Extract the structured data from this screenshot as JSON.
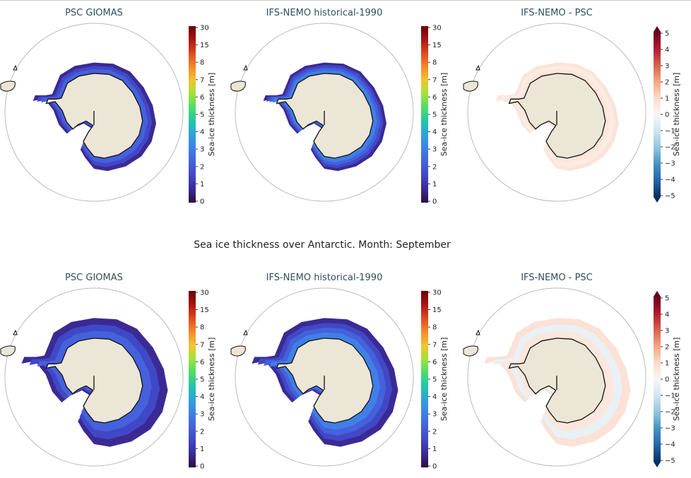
{
  "figure": {
    "subtitle": "Sea ice thickness over Antarctic. Month: September",
    "colors": {
      "title": "#2f4f5a",
      "land": "#ece6d6",
      "coast": "#111111",
      "frame": "#bbbbbb"
    }
  },
  "chart_data": [
    {
      "type": "heatmap",
      "title": "PSC GIOMAS",
      "colorbar_label": "Sea-ice thickness [m]",
      "cmap": "turbo",
      "ticks": [
        "0",
        "1",
        "2",
        "3",
        "4",
        "5",
        "6",
        "7",
        "8",
        "15",
        "30"
      ],
      "ice_extent": "small",
      "thickness_range": [
        0,
        2
      ]
    },
    {
      "type": "heatmap",
      "title": "IFS-NEMO historical-1990",
      "colorbar_label": "Sea-ice thickness [m]",
      "cmap": "turbo",
      "ticks": [
        "0",
        "1",
        "2",
        "3",
        "4",
        "5",
        "6",
        "7",
        "8",
        "15",
        "30"
      ],
      "ice_extent": "small",
      "thickness_range": [
        0,
        5
      ]
    },
    {
      "type": "heatmap",
      "title": "IFS-NEMO -  PSC",
      "colorbar_label": "Sea-ice thickness [m]",
      "cmap": "RdBu_r",
      "ticks": [
        "5",
        "4",
        "3",
        "2",
        "1",
        "0",
        "−1",
        "−2",
        "−3",
        "−4",
        "−5"
      ],
      "ice_extent": "small",
      "difference_range": [
        0,
        1.5
      ]
    },
    {
      "type": "heatmap",
      "title": "PSC GIOMAS",
      "colorbar_label": "Sea-ice thickness [m]",
      "cmap": "turbo",
      "ticks": [
        "0",
        "1",
        "2",
        "3",
        "4",
        "5",
        "6",
        "7",
        "8",
        "15",
        "30"
      ],
      "ice_extent": "large",
      "thickness_range": [
        0,
        2
      ]
    },
    {
      "type": "heatmap",
      "title": "IFS-NEMO historical-1990",
      "colorbar_label": "Sea-ice thickness [m]",
      "cmap": "turbo",
      "ticks": [
        "0",
        "1",
        "2",
        "3",
        "4",
        "5",
        "6",
        "7",
        "8",
        "15",
        "30"
      ],
      "ice_extent": "large",
      "thickness_range": [
        0,
        5
      ]
    },
    {
      "type": "heatmap",
      "title": "IFS-NEMO -  PSC",
      "colorbar_label": "Sea-ice thickness [m]",
      "cmap": "RdBu_r",
      "ticks": [
        "5",
        "4",
        "3",
        "2",
        "1",
        "0",
        "−1",
        "−2",
        "−3",
        "−4",
        "−5"
      ],
      "ice_extent": "large",
      "difference_range": [
        -1,
        1.5
      ]
    }
  ]
}
